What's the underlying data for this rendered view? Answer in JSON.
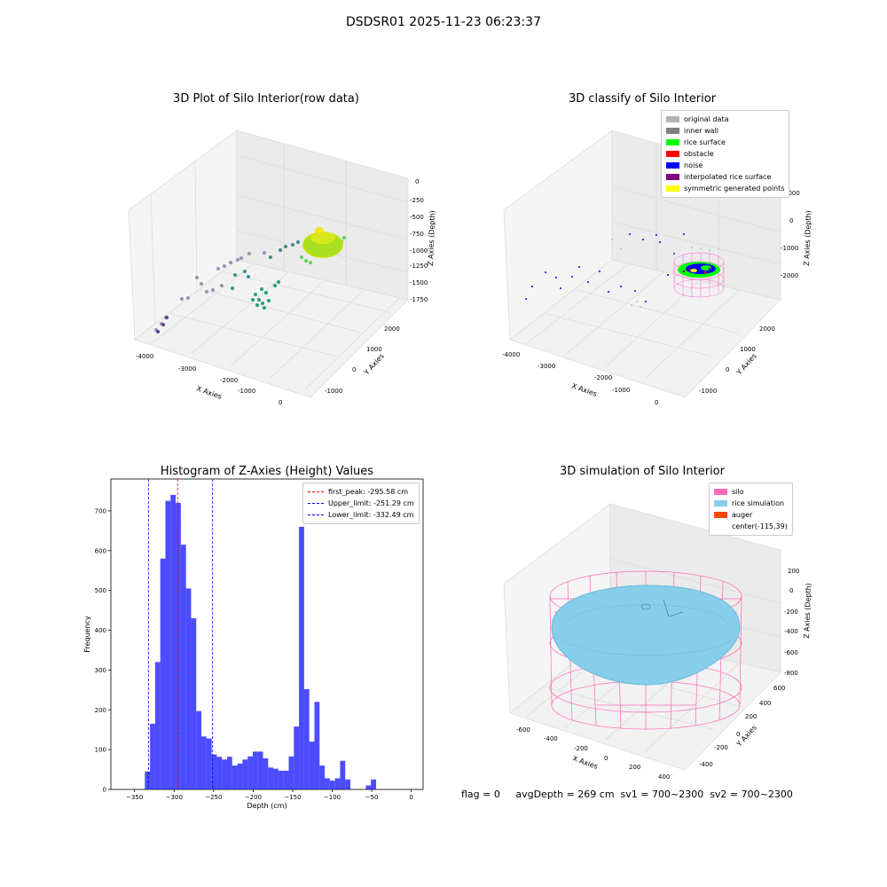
{
  "suptitle": "DSDSR01 2025-11-23 06:23:37",
  "panels": {
    "raw": {
      "title": "3D Plot of Silo Interior(row data)",
      "xlabel": "X Axies",
      "ylabel": "Y Axies",
      "zlabel": "Z Axies (Depth)",
      "xticks": [
        "-4000",
        "-3000",
        "-2000",
        "-1000",
        "0"
      ],
      "yticks": [
        "-1000",
        "0",
        "1000",
        "2000"
      ],
      "zticks": [
        "0",
        "-250",
        "-500",
        "-750",
        "-1000",
        "-1250",
        "-1500",
        "-1750"
      ]
    },
    "classify": {
      "title": "3D classify of Silo Interior",
      "xlabel": "X Axies",
      "ylabel": "Y Axies",
      "zlabel": "Z Axies (Depth)",
      "xticks": [
        "-4000",
        "-3000",
        "-2000",
        "-1000",
        "0"
      ],
      "yticks": [
        "-1000",
        "0",
        "1000",
        "2000"
      ],
      "zticks": [
        "1000",
        "0",
        "-1000",
        "-2000"
      ],
      "legend": [
        {
          "label": "original data",
          "color": "#b3b3b3"
        },
        {
          "label": "inner wall",
          "color": "#808080"
        },
        {
          "label": "rice surface",
          "color": "#00ff00"
        },
        {
          "label": "obstacle",
          "color": "#ff0000"
        },
        {
          "label": "noise",
          "color": "#0000ff"
        },
        {
          "label": "interpolated rice surface",
          "color": "#800080"
        },
        {
          "label": "symmetric generated points",
          "color": "#ffff00"
        }
      ]
    },
    "simulation": {
      "title": "3D simulation of Silo Interior",
      "xlabel": "X Axies",
      "ylabel": "Y Axies",
      "zlabel": "Z Axies (Depth)",
      "xticks": [
        "-600",
        "-400",
        "-200",
        "0",
        "200",
        "400"
      ],
      "yticks": [
        "-400",
        "-200",
        "0",
        "200",
        "400",
        "600"
      ],
      "zticks": [
        "200",
        "0",
        "-200",
        "-400",
        "-600",
        "-800"
      ],
      "legend": [
        {
          "label": "silo",
          "color": "#ff69b4"
        },
        {
          "label": "rice simulation",
          "color": "#87ceeb"
        },
        {
          "label": "auger",
          "color": "#ff4500"
        },
        {
          "label": "center(-115,39)",
          "color": ""
        }
      ]
    }
  },
  "footer": {
    "text": "flag = 0     avgDepth = 269 cm  sv1 = 700~2300  sv2 = 700~2300"
  },
  "chart_data": {
    "type": "bar",
    "title": "Histogram of Z-Axies (Height) Values",
    "xlabel": "Depth (cm)",
    "ylabel": "Frequency",
    "xlim": [
      -380,
      15
    ],
    "ylim": [
      0,
      780
    ],
    "xticks": [
      -350,
      -300,
      -250,
      -200,
      -150,
      -100,
      -50,
      0
    ],
    "yticks": [
      0,
      100,
      200,
      300,
      400,
      500,
      600,
      700
    ],
    "bin_width": 6.5,
    "bin_start": -337,
    "values": [
      45,
      165,
      320,
      580,
      725,
      740,
      720,
      615,
      505,
      430,
      197,
      133,
      128,
      88,
      82,
      75,
      82,
      60,
      65,
      75,
      83,
      95,
      95,
      78,
      55,
      52,
      47,
      47,
      83,
      158,
      660,
      252,
      120,
      220,
      60,
      28,
      22,
      28,
      72,
      25,
      0,
      0,
      0,
      10,
      25
    ],
    "lines": [
      {
        "label": "first_peak: -295.58 cm",
        "x": -295.58,
        "color": "#ff0000"
      },
      {
        "label": "Upper_limit: -251.29 cm",
        "x": -251.29,
        "color": "#0000ff"
      },
      {
        "label": "Lower_limit: -332.49 cm",
        "x": -332.49,
        "color": "#0000ff"
      }
    ],
    "legend_position": "upper right",
    "bar_color": "#0000ff"
  }
}
